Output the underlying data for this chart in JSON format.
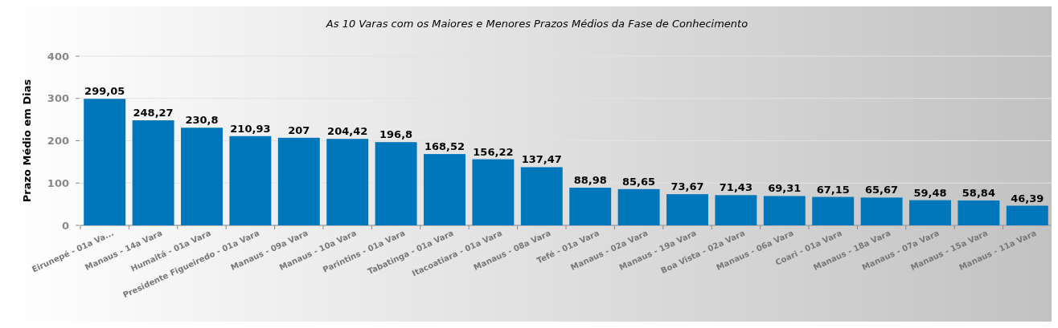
{
  "chart_data": {
    "type": "bar",
    "title": "As 10 Varas com os Maiores e Menores Prazos Médios da Fase de Conhecimento",
    "ylabel": "Prazo Médio em Dias",
    "categories": [
      "Eirunepé  - 01a Va...",
      "Manaus  - 14a Vara",
      "Humaitá  - 01a Vara",
      "Presidente Figueiredo  - 01a Vara",
      "Manaus  - 09a Vara",
      "Manaus  - 10a Vara",
      "Parintins  - 01a Vara",
      "Tabatinga  - 01a Vara",
      "Itacoatiara  - 01a Vara",
      "Manaus  - 08a Vara",
      "Tefé  - 01a Vara",
      "Manaus  - 02a Vara",
      "Manaus  - 19a Vara",
      "Boa Vista  - 02a Vara",
      "Manaus  - 06a Vara",
      "Coari  - 01a Vara",
      "Manaus  - 18a Vara",
      "Manaus  - 07a Vara",
      "Manaus  - 15a Vara",
      "Manaus  - 11a Vara"
    ],
    "values": [
      299.05,
      248.27,
      230.8,
      210.93,
      207,
      204.42,
      196.8,
      168.52,
      156.22,
      137.47,
      88.98,
      85.65,
      73.67,
      71.43,
      69.31,
      67.15,
      65.67,
      59.48,
      58.84,
      46.39
    ],
    "value_labels": [
      "299,05",
      "248,27",
      "230,8",
      "210,93",
      "207",
      "204,42",
      "196,8",
      "168,52",
      "156,22",
      "137,47",
      "88,98",
      "85,65",
      "73,67",
      "71,43",
      "69,31",
      "67,15",
      "65,67",
      "59,48",
      "58,84",
      "46,39"
    ],
    "color": "#0077bb",
    "ylim": [
      0,
      400
    ],
    "yticks": [
      0,
      100,
      200,
      300,
      400
    ],
    "grid": "y"
  }
}
